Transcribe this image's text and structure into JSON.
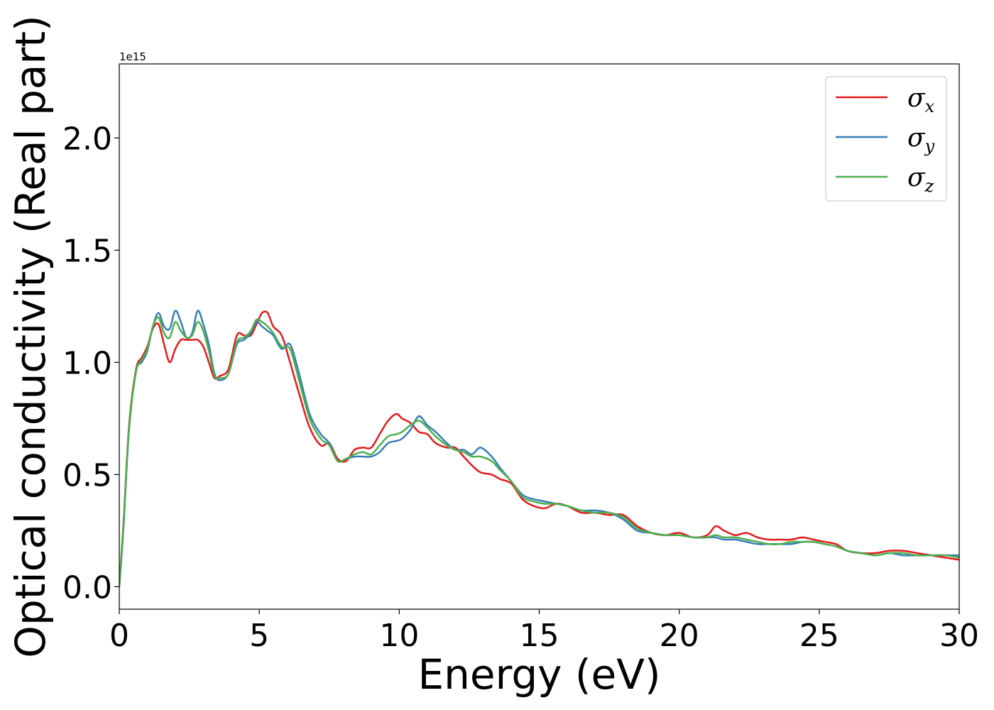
{
  "chart_data": {
    "type": "line",
    "xlabel": "Energy (eV)",
    "ylabel": "Optical conductivity (Real part)",
    "y_offset_text": "1e15",
    "xlim": [
      0,
      30
    ],
    "ylim": [
      -0.1,
      2.33
    ],
    "x_ticks": [
      0,
      5,
      10,
      15,
      20,
      25,
      30
    ],
    "x_tick_labels": [
      "0",
      "5",
      "10",
      "15",
      "20",
      "25",
      "30"
    ],
    "y_ticks": [
      0.0,
      0.5,
      1.0,
      1.5,
      2.0
    ],
    "y_tick_labels": [
      "0.0",
      "0.5",
      "1.0",
      "1.5",
      "2.0"
    ],
    "grid": false,
    "legend_position": "top-right",
    "series": [
      {
        "name": "σx",
        "symbol": "σ",
        "subscript": "x",
        "color": "#e41a1c",
        "x": [
          0,
          0.15,
          0.35,
          0.6,
          0.8,
          1.0,
          1.2,
          1.4,
          1.6,
          1.8,
          2.0,
          2.2,
          2.4,
          2.6,
          2.8,
          3.0,
          3.2,
          3.4,
          3.6,
          3.9,
          4.2,
          4.45,
          4.7,
          4.9,
          5.1,
          5.3,
          5.5,
          5.8,
          6.1,
          6.4,
          6.8,
          7.2,
          7.5,
          7.8,
          8.1,
          8.4,
          8.7,
          9.0,
          9.3,
          9.6,
          9.9,
          10.1,
          10.4,
          10.7,
          11.0,
          11.3,
          11.7,
          12.0,
          12.3,
          12.6,
          12.9,
          13.3,
          13.6,
          14.0,
          14.4,
          14.8,
          15.2,
          15.6,
          16.0,
          16.5,
          17.0,
          17.5,
          18.0,
          18.5,
          19.0,
          19.5,
          20.0,
          20.5,
          21.0,
          21.3,
          21.6,
          22.0,
          22.4,
          22.8,
          23.2,
          23.6,
          24.0,
          24.4,
          24.8,
          25.2,
          25.6,
          26.0,
          26.5,
          27.0,
          27.5,
          28.0,
          28.5,
          29.0,
          29.5,
          30.0
        ],
        "y": [
          0.0,
          0.28,
          0.72,
          0.97,
          1.02,
          1.07,
          1.15,
          1.17,
          1.08,
          1.0,
          1.06,
          1.1,
          1.1,
          1.1,
          1.1,
          1.07,
          1.0,
          0.93,
          0.94,
          0.97,
          1.12,
          1.12,
          1.12,
          1.17,
          1.22,
          1.22,
          1.16,
          1.12,
          1.0,
          0.87,
          0.71,
          0.63,
          0.64,
          0.57,
          0.56,
          0.61,
          0.62,
          0.62,
          0.68,
          0.74,
          0.77,
          0.75,
          0.73,
          0.69,
          0.68,
          0.64,
          0.62,
          0.62,
          0.58,
          0.54,
          0.51,
          0.5,
          0.48,
          0.46,
          0.39,
          0.36,
          0.35,
          0.37,
          0.36,
          0.33,
          0.33,
          0.32,
          0.32,
          0.27,
          0.24,
          0.23,
          0.24,
          0.22,
          0.23,
          0.27,
          0.25,
          0.23,
          0.24,
          0.22,
          0.21,
          0.21,
          0.21,
          0.22,
          0.21,
          0.2,
          0.19,
          0.16,
          0.15,
          0.15,
          0.16,
          0.16,
          0.15,
          0.14,
          0.13,
          0.12
        ]
      },
      {
        "name": "σy",
        "symbol": "σ",
        "subscript": "y",
        "color": "#377eb8",
        "x": [
          0,
          0.15,
          0.35,
          0.6,
          0.8,
          1.0,
          1.2,
          1.4,
          1.6,
          1.8,
          2.0,
          2.2,
          2.4,
          2.6,
          2.8,
          3.0,
          3.2,
          3.4,
          3.6,
          3.9,
          4.2,
          4.45,
          4.7,
          4.9,
          5.1,
          5.3,
          5.5,
          5.8,
          6.1,
          6.4,
          6.8,
          7.2,
          7.5,
          7.8,
          8.1,
          8.4,
          8.7,
          9.0,
          9.3,
          9.6,
          9.9,
          10.1,
          10.4,
          10.7,
          11.0,
          11.3,
          11.7,
          12.0,
          12.3,
          12.6,
          12.9,
          13.3,
          13.6,
          14.0,
          14.4,
          14.8,
          15.2,
          15.6,
          16.0,
          16.5,
          17.0,
          17.5,
          18.0,
          18.5,
          19.0,
          19.5,
          20.0,
          20.5,
          21.0,
          21.3,
          21.6,
          22.0,
          22.4,
          22.8,
          23.2,
          23.6,
          24.0,
          24.4,
          24.8,
          25.2,
          25.6,
          26.0,
          26.5,
          27.0,
          27.5,
          28.0,
          28.5,
          29.0,
          29.5,
          30.0
        ],
        "y": [
          0.0,
          0.26,
          0.7,
          0.96,
          1.0,
          1.05,
          1.16,
          1.22,
          1.16,
          1.15,
          1.23,
          1.18,
          1.11,
          1.13,
          1.23,
          1.17,
          1.08,
          0.95,
          0.92,
          0.95,
          1.08,
          1.1,
          1.13,
          1.18,
          1.16,
          1.14,
          1.12,
          1.06,
          1.08,
          0.96,
          0.77,
          0.68,
          0.64,
          0.56,
          0.57,
          0.58,
          0.58,
          0.58,
          0.6,
          0.64,
          0.65,
          0.66,
          0.7,
          0.76,
          0.72,
          0.69,
          0.64,
          0.61,
          0.61,
          0.59,
          0.62,
          0.58,
          0.53,
          0.47,
          0.41,
          0.39,
          0.38,
          0.37,
          0.36,
          0.34,
          0.34,
          0.33,
          0.3,
          0.25,
          0.24,
          0.23,
          0.23,
          0.22,
          0.22,
          0.22,
          0.21,
          0.21,
          0.2,
          0.19,
          0.19,
          0.19,
          0.19,
          0.2,
          0.2,
          0.19,
          0.18,
          0.16,
          0.15,
          0.14,
          0.15,
          0.14,
          0.14,
          0.14,
          0.14,
          0.14
        ]
      },
      {
        "name": "σz",
        "symbol": "σ",
        "subscript": "z",
        "color": "#4daf4a",
        "x": [
          0,
          0.15,
          0.35,
          0.6,
          0.8,
          1.0,
          1.2,
          1.4,
          1.6,
          1.8,
          2.0,
          2.2,
          2.4,
          2.6,
          2.8,
          3.0,
          3.2,
          3.4,
          3.6,
          3.9,
          4.2,
          4.45,
          4.7,
          4.9,
          5.1,
          5.3,
          5.5,
          5.8,
          6.1,
          6.4,
          6.8,
          7.2,
          7.5,
          7.8,
          8.1,
          8.4,
          8.7,
          9.0,
          9.3,
          9.6,
          9.9,
          10.1,
          10.4,
          10.7,
          11.0,
          11.3,
          11.7,
          12.0,
          12.3,
          12.6,
          12.9,
          13.3,
          13.6,
          14.0,
          14.4,
          14.8,
          15.2,
          15.6,
          16.0,
          16.5,
          17.0,
          17.5,
          18.0,
          18.5,
          19.0,
          19.5,
          20.0,
          20.5,
          21.0,
          21.3,
          21.6,
          22.0,
          22.4,
          22.8,
          23.2,
          23.6,
          24.0,
          24.4,
          24.8,
          25.2,
          25.6,
          26.0,
          26.5,
          27.0,
          27.5,
          28.0,
          28.5,
          29.0,
          29.5,
          30.0
        ],
        "y": [
          0.0,
          0.27,
          0.71,
          0.96,
          1.01,
          1.06,
          1.16,
          1.2,
          1.13,
          1.11,
          1.18,
          1.14,
          1.11,
          1.12,
          1.18,
          1.14,
          1.05,
          0.94,
          0.93,
          0.95,
          1.09,
          1.11,
          1.14,
          1.19,
          1.18,
          1.16,
          1.13,
          1.07,
          1.06,
          0.93,
          0.75,
          0.66,
          0.63,
          0.56,
          0.57,
          0.59,
          0.6,
          0.59,
          0.63,
          0.67,
          0.68,
          0.69,
          0.72,
          0.74,
          0.71,
          0.67,
          0.63,
          0.61,
          0.6,
          0.58,
          0.58,
          0.56,
          0.52,
          0.47,
          0.4,
          0.38,
          0.37,
          0.37,
          0.36,
          0.34,
          0.33,
          0.33,
          0.31,
          0.26,
          0.24,
          0.23,
          0.23,
          0.22,
          0.22,
          0.23,
          0.22,
          0.22,
          0.21,
          0.2,
          0.19,
          0.19,
          0.2,
          0.2,
          0.2,
          0.19,
          0.18,
          0.16,
          0.15,
          0.14,
          0.15,
          0.15,
          0.14,
          0.14,
          0.14,
          0.13
        ]
      }
    ]
  }
}
